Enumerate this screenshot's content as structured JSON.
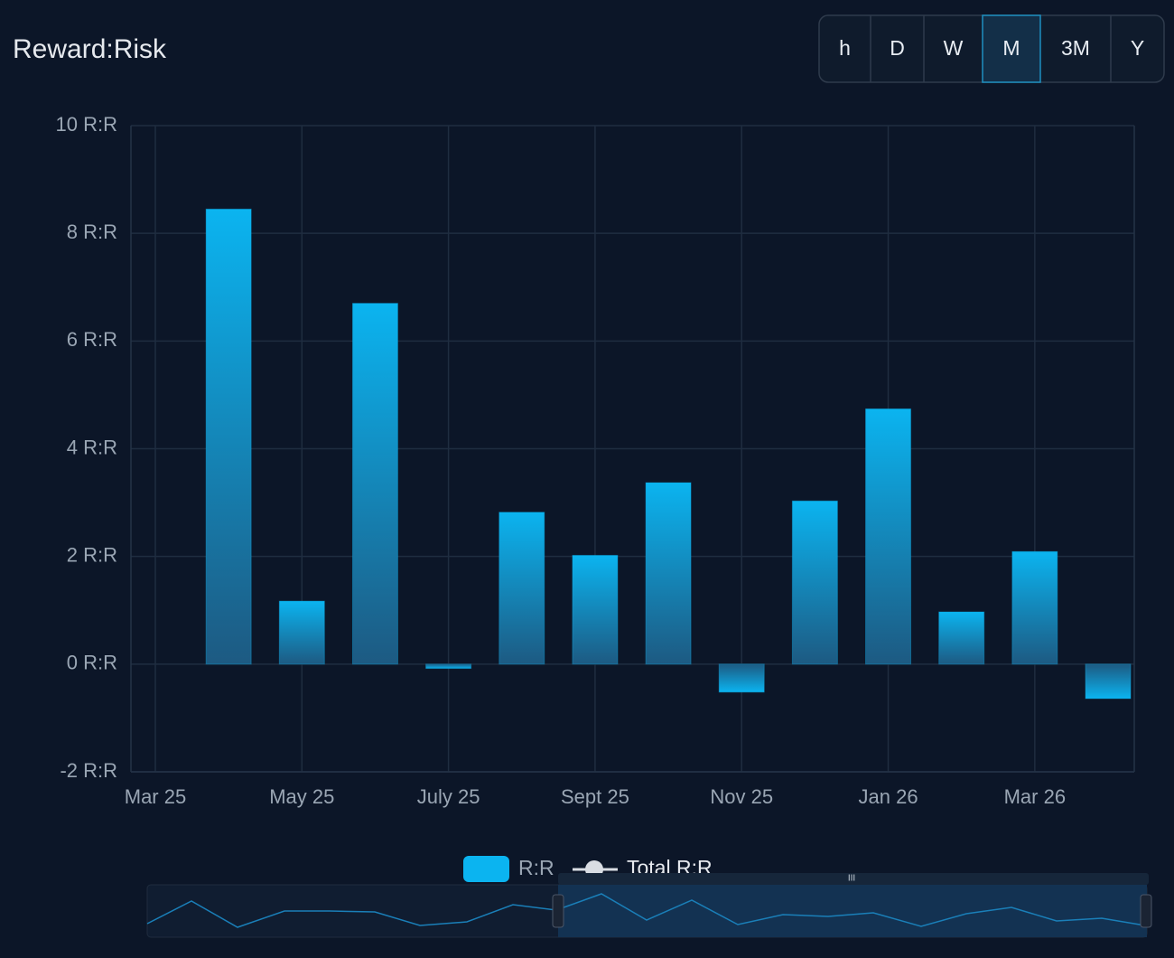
{
  "chart_data": {
    "type": "bar",
    "title": "Reward:Risk",
    "range_buttons": [
      "h",
      "D",
      "W",
      "M",
      "3M",
      "Y"
    ],
    "active_range_index": 3,
    "x": [
      "2025-04",
      "2025-05",
      "2025-06",
      "2025-07",
      "2025-08",
      "2025-09",
      "2025-10",
      "2025-11",
      "2025-12",
      "2026-01",
      "2026-02",
      "2026-03",
      "2026-04"
    ],
    "series": [
      {
        "name": "R:R",
        "color": "#0bb4f0",
        "values": [
          8.45,
          1.17,
          6.7,
          -0.08,
          2.82,
          2.02,
          3.37,
          -0.52,
          3.03,
          4.74,
          0.97,
          2.09,
          -0.64
        ]
      },
      {
        "name": "Total R:R",
        "color": "#d9dde3",
        "values": [
          null,
          null,
          null,
          null,
          null,
          null,
          null,
          null,
          null,
          null,
          null,
          null,
          null
        ]
      }
    ],
    "xlim": [
      "2025-03",
      "2026-04"
    ],
    "xticks": [
      {
        "value": "2025-03",
        "label": "Mar 25"
      },
      {
        "value": "2025-05",
        "label": "May 25"
      },
      {
        "value": "2025-07",
        "label": "July 25"
      },
      {
        "value": "2025-09",
        "label": "Sept 25"
      },
      {
        "value": "2025-11",
        "label": "Nov 25"
      },
      {
        "value": "2026-01",
        "label": "Jan 26"
      },
      {
        "value": "2026-03",
        "label": "Mar 26"
      }
    ],
    "ylim": [
      -2,
      10
    ],
    "yticks": [
      {
        "value": -2,
        "label": "-2 R:R"
      },
      {
        "value": 0,
        "label": "0 R:R"
      },
      {
        "value": 2,
        "label": "2 R:R"
      },
      {
        "value": 4,
        "label": "4 R:R"
      },
      {
        "value": 6,
        "label": "6 R:R"
      },
      {
        "value": 8,
        "label": "8 R:R"
      },
      {
        "value": 10,
        "label": "10 R:R"
      }
    ],
    "grid": true
  }
}
